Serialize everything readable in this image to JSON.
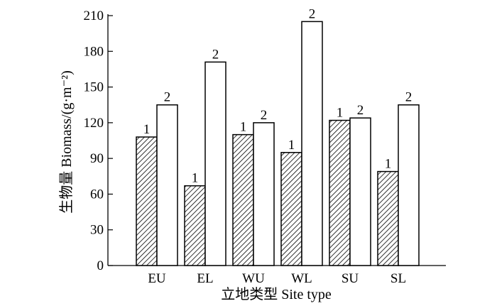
{
  "chart_data": {
    "type": "bar",
    "categories": [
      "EU",
      "EL",
      "WU",
      "WL",
      "SU",
      "SL"
    ],
    "series": [
      {
        "name": "1",
        "pattern": "hatched",
        "values": [
          108,
          67,
          110,
          95,
          122,
          79
        ]
      },
      {
        "name": "2",
        "pattern": "open",
        "values": [
          135,
          171,
          120,
          205,
          124,
          135
        ]
      }
    ],
    "bar_labels": [
      "1",
      "2"
    ],
    "xlabel": "立地类型 Site type",
    "ylabel": "生物量 Biomass/(g·m⁻²)",
    "ylim": [
      0,
      210
    ],
    "yticks": [
      0,
      30,
      60,
      90,
      120,
      150,
      180,
      210
    ],
    "grid": false,
    "colors": {
      "bar_stroke": "#000000",
      "open_fill": "#ffffff",
      "hatch": "#000000"
    }
  }
}
